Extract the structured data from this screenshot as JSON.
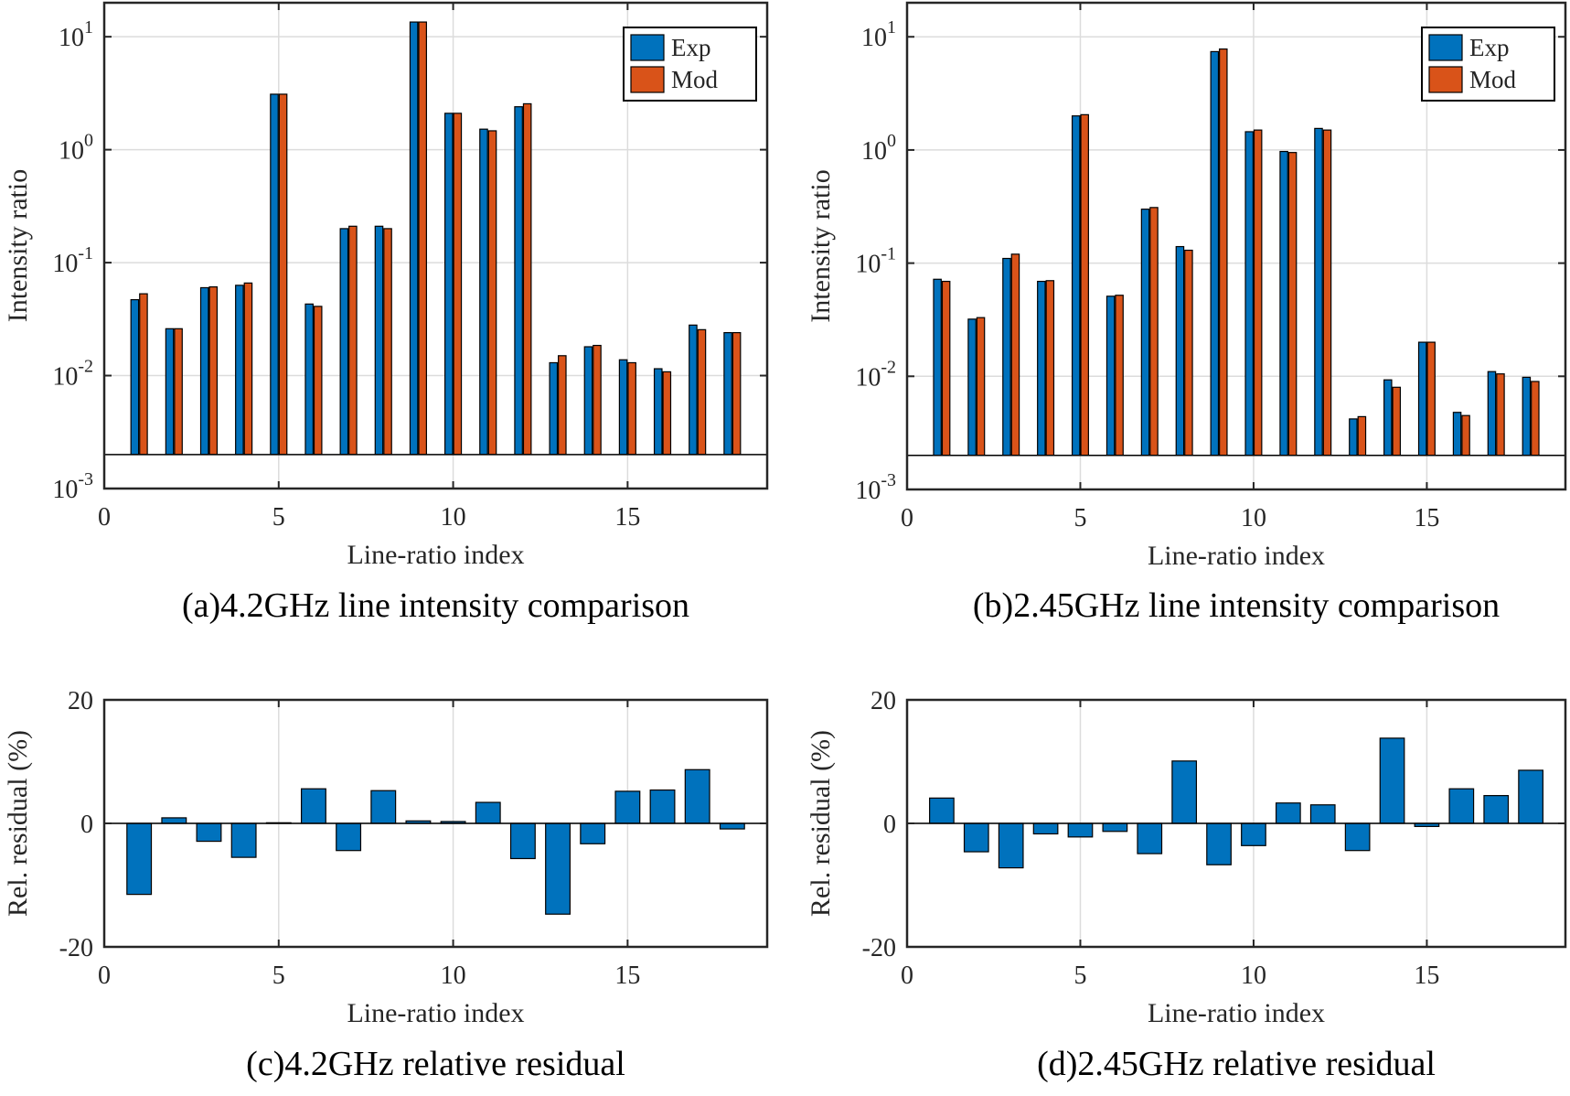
{
  "colors": {
    "exp": "#0072BD",
    "mod": "#D95319",
    "grid": "#dcdcdc",
    "axis": "#262626"
  },
  "chart_data": [
    {
      "id": "a",
      "type": "bar",
      "yscale": "log",
      "title": "(a)4.2GHz line intensity comparison",
      "xlabel": "Line-ratio index",
      "ylabel": "Intensity ratio",
      "xlim": [
        0,
        19
      ],
      "ylim": [
        0.001,
        20
      ],
      "baseline": 0.002,
      "xticks": [
        "0",
        "5",
        "10",
        "15"
      ],
      "xtick_values": [
        0,
        5,
        10,
        15
      ],
      "ytick_values": [
        0.001,
        0.01,
        0.1,
        1,
        10
      ],
      "ytick_labels": [
        {
          "base": "10",
          "exp": "-3"
        },
        {
          "base": "10",
          "exp": "-2"
        },
        {
          "base": "10",
          "exp": "-1"
        },
        {
          "base": "10",
          "exp": "0"
        },
        {
          "base": "10",
          "exp": "1"
        }
      ],
      "legend": [
        "Exp",
        "Mod"
      ],
      "legend_position": "top-right",
      "x": [
        1,
        2,
        3,
        4,
        5,
        6,
        7,
        8,
        9,
        10,
        11,
        12,
        13,
        14,
        15,
        16,
        17,
        18
      ],
      "series": [
        {
          "name": "Exp",
          "values": [
            0.047,
            0.026,
            0.06,
            0.063,
            3.1,
            0.043,
            0.2,
            0.21,
            13.5,
            2.1,
            1.52,
            2.4,
            0.013,
            0.018,
            0.0138,
            0.0115,
            0.028,
            0.024
          ]
        },
        {
          "name": "Mod",
          "values": [
            0.053,
            0.026,
            0.061,
            0.066,
            3.1,
            0.041,
            0.21,
            0.2,
            13.5,
            2.1,
            1.47,
            2.55,
            0.015,
            0.0185,
            0.013,
            0.0108,
            0.0255,
            0.024
          ]
        }
      ]
    },
    {
      "id": "b",
      "type": "bar",
      "yscale": "log",
      "title": "(b)2.45GHz line intensity comparison",
      "xlabel": "Line-ratio index",
      "ylabel": "Intensity ratio",
      "xlim": [
        0,
        19
      ],
      "ylim": [
        0.001,
        20
      ],
      "baseline": 0.002,
      "xticks": [
        "0",
        "5",
        "10",
        "15"
      ],
      "xtick_values": [
        0,
        5,
        10,
        15
      ],
      "ytick_values": [
        0.001,
        0.01,
        0.1,
        1,
        10
      ],
      "ytick_labels": [
        {
          "base": "10",
          "exp": "-3"
        },
        {
          "base": "10",
          "exp": "-2"
        },
        {
          "base": "10",
          "exp": "-1"
        },
        {
          "base": "10",
          "exp": "0"
        },
        {
          "base": "10",
          "exp": "1"
        }
      ],
      "legend": [
        "Exp",
        "Mod"
      ],
      "legend_position": "top-right",
      "x": [
        1,
        2,
        3,
        4,
        5,
        6,
        7,
        8,
        9,
        10,
        11,
        12,
        13,
        14,
        15,
        16,
        17,
        18
      ],
      "series": [
        {
          "name": "Exp",
          "values": [
            0.072,
            0.032,
            0.11,
            0.069,
            2.0,
            0.051,
            0.3,
            0.14,
            7.4,
            1.45,
            0.97,
            1.55,
            0.0042,
            0.0093,
            0.02,
            0.0048,
            0.011,
            0.0098
          ]
        },
        {
          "name": "Mod",
          "values": [
            0.069,
            0.033,
            0.12,
            0.07,
            2.05,
            0.052,
            0.31,
            0.13,
            7.8,
            1.5,
            0.95,
            1.5,
            0.0044,
            0.008,
            0.02,
            0.0045,
            0.0105,
            0.009
          ]
        }
      ]
    },
    {
      "id": "c",
      "type": "bar",
      "yscale": "linear",
      "title": "(c)4.2GHz relative residual",
      "xlabel": "Line-ratio index",
      "ylabel": "Rel. residual (%)",
      "xlim": [
        0,
        19
      ],
      "ylim": [
        -20,
        20
      ],
      "xticks": [
        "0",
        "5",
        "10",
        "15"
      ],
      "xtick_values": [
        0,
        5,
        10,
        15
      ],
      "ytick_values": [
        -20,
        0,
        20
      ],
      "ytick_labels": [
        "-20",
        "0",
        "20"
      ],
      "x": [
        1,
        2,
        3,
        4,
        5,
        6,
        7,
        8,
        9,
        10,
        11,
        12,
        13,
        14,
        15,
        16,
        17,
        18
      ],
      "values": [
        -11.5,
        0.9,
        -2.9,
        -5.5,
        0.1,
        5.6,
        -4.4,
        5.3,
        0.4,
        0.3,
        3.4,
        -5.7,
        -14.7,
        -3.3,
        5.2,
        5.4,
        8.7,
        -0.9
      ]
    },
    {
      "id": "d",
      "type": "bar",
      "yscale": "linear",
      "title": "(d)2.45GHz relative residual",
      "xlabel": "Line-ratio index",
      "ylabel": "Rel. residual (%)",
      "xlim": [
        0,
        19
      ],
      "ylim": [
        -20,
        20
      ],
      "xticks": [
        "0",
        "5",
        "10",
        "15"
      ],
      "xtick_values": [
        0,
        5,
        10,
        15
      ],
      "ytick_values": [
        -20,
        0,
        20
      ],
      "ytick_labels": [
        "-20",
        "0",
        "20"
      ],
      "x": [
        1,
        2,
        3,
        4,
        5,
        6,
        7,
        8,
        9,
        10,
        11,
        12,
        13,
        14,
        15,
        16,
        17,
        18
      ],
      "values": [
        4.1,
        -4.6,
        -7.2,
        -1.7,
        -2.2,
        -1.3,
        -4.9,
        10.1,
        -6.7,
        -3.6,
        3.3,
        3.0,
        -4.4,
        13.8,
        -0.5,
        5.6,
        4.5,
        8.6
      ]
    }
  ]
}
